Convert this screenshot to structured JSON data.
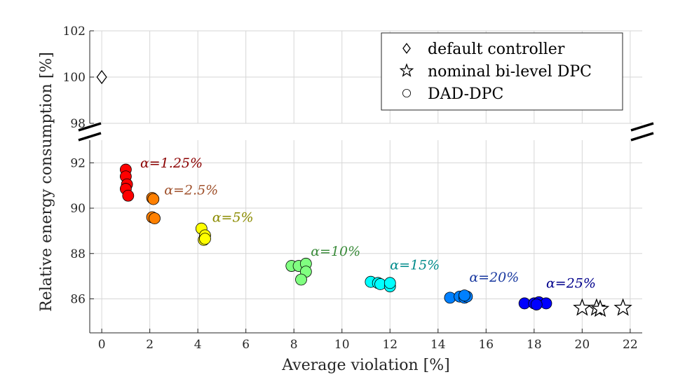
{
  "chart_data": {
    "type": "scatter",
    "xlabel": "Average violation [%]",
    "ylabel": "Relative energy consumption [%]",
    "xlim": [
      -0.5,
      22.5
    ],
    "xticks": [
      0,
      2,
      4,
      6,
      8,
      10,
      12,
      14,
      16,
      18,
      20,
      22
    ],
    "x_tick_labels": [
      "0",
      "2",
      "4",
      "6",
      "8",
      "10",
      "12",
      "14",
      "16",
      "18",
      "20",
      "22"
    ],
    "broken_y_axis": true,
    "top_panel": {
      "ylim": [
        98,
        102
      ],
      "yticks": [
        98,
        100,
        102
      ],
      "y_tick_labels": [
        "98",
        "100",
        "102"
      ]
    },
    "bottom_panel": {
      "ylim": [
        84.5,
        93
      ],
      "yticks": [
        86,
        88,
        90,
        92
      ],
      "y_tick_labels": [
        "86",
        "88",
        "90",
        "92"
      ]
    },
    "grid": true,
    "legend": {
      "position": "top-right",
      "entries": [
        {
          "label": "default controller",
          "marker": "diamond"
        },
        {
          "label": "nominal bi-level DPC",
          "marker": "star"
        },
        {
          "label": "DAD-DPC",
          "marker": "circle"
        }
      ]
    },
    "series": [
      {
        "name": "default controller",
        "marker": "diamond",
        "points": [
          [
            0,
            100
          ]
        ]
      },
      {
        "name": "nominal bi-level DPC",
        "marker": "star",
        "points": [
          [
            20.0,
            85.6
          ],
          [
            20.6,
            85.6
          ],
          [
            20.75,
            85.55
          ],
          [
            21.7,
            85.6
          ]
        ]
      },
      {
        "name": "α=1.25%",
        "marker": "circle",
        "color": "#ff0000",
        "label_color": "#8b0000",
        "points": [
          [
            1.0,
            91.7
          ],
          [
            1.0,
            91.4
          ],
          [
            1.05,
            91.05
          ],
          [
            1.0,
            90.85
          ],
          [
            1.1,
            90.55
          ]
        ]
      },
      {
        "name": "α=2.5%",
        "marker": "circle",
        "color": "#ff8000",
        "label_color": "#a0522d",
        "points": [
          [
            2.1,
            90.45
          ],
          [
            2.15,
            90.4
          ],
          [
            2.1,
            89.6
          ],
          [
            2.2,
            89.55
          ]
        ]
      },
      {
        "name": "α=5%",
        "marker": "circle",
        "color": "#ffff00",
        "label_color": "#8b8b00",
        "points": [
          [
            4.15,
            89.1
          ],
          [
            4.3,
            88.8
          ],
          [
            4.25,
            88.6
          ],
          [
            4.3,
            88.65
          ]
        ]
      },
      {
        "name": "α=10%",
        "marker": "circle",
        "color": "#80ff80",
        "label_color": "#3c8c3c",
        "points": [
          [
            7.9,
            87.45
          ],
          [
            8.2,
            87.45
          ],
          [
            8.5,
            87.55
          ],
          [
            8.5,
            87.2
          ],
          [
            8.3,
            86.85
          ]
        ]
      },
      {
        "name": "α=15%",
        "marker": "circle",
        "color": "#00ffff",
        "label_color": "#008b8b",
        "points": [
          [
            11.2,
            86.75
          ],
          [
            11.5,
            86.7
          ],
          [
            11.6,
            86.65
          ],
          [
            12.0,
            86.55
          ],
          [
            12.0,
            86.7
          ]
        ]
      },
      {
        "name": "α=20%",
        "marker": "circle",
        "color": "#0080ff",
        "label_color": "#1a3aa0",
        "points": [
          [
            14.5,
            86.05
          ],
          [
            14.9,
            86.1
          ],
          [
            15.1,
            86.05
          ],
          [
            15.2,
            86.1
          ],
          [
            15.1,
            86.15
          ]
        ]
      },
      {
        "name": "α=25%",
        "marker": "circle",
        "color": "#0000ff",
        "label_color": "#00008b",
        "points": [
          [
            17.6,
            85.8
          ],
          [
            18.0,
            85.8
          ],
          [
            18.2,
            85.85
          ],
          [
            18.5,
            85.8
          ],
          [
            18.1,
            85.75
          ]
        ]
      }
    ],
    "annotations": [
      {
        "text": "α=1.25%",
        "x": 1.6,
        "y": 91.8,
        "color": "#8b0000"
      },
      {
        "text": "α=2.5%",
        "x": 2.6,
        "y": 90.6,
        "color": "#a0522d"
      },
      {
        "text": "α=5%",
        "x": 4.6,
        "y": 89.4,
        "color": "#8b8b00"
      },
      {
        "text": "α=10%",
        "x": 8.7,
        "y": 87.9,
        "color": "#3c8c3c"
      },
      {
        "text": "α=15%",
        "x": 12.0,
        "y": 87.3,
        "color": "#008b8b"
      },
      {
        "text": "α=20%",
        "x": 15.3,
        "y": 86.75,
        "color": "#1a3aa0"
      },
      {
        "text": "α=25%",
        "x": 18.5,
        "y": 86.5,
        "color": "#00008b"
      }
    ]
  }
}
